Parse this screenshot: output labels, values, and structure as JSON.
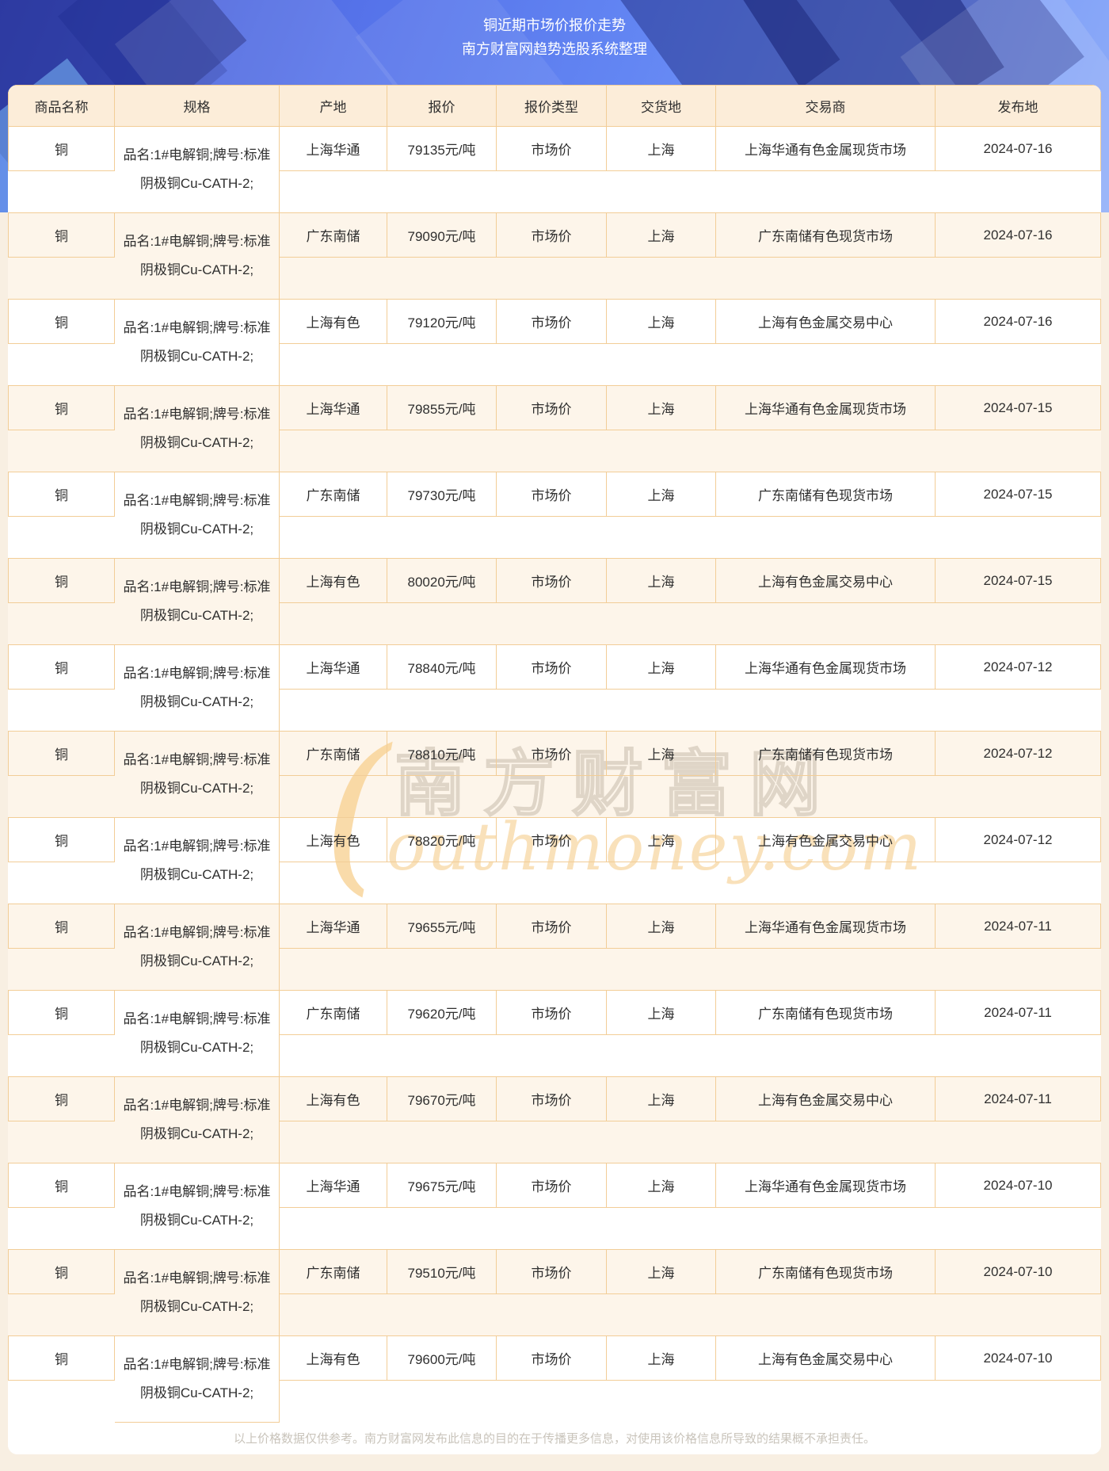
{
  "page": {
    "title": "铜近期市场价报价走势",
    "subtitle": "南方财富网趋势选股系统整理",
    "disclaimer": "以上价格数据仅供参考。南方财富网发布此信息的目的在于传播更多信息，对使用该价格信息所导致的结果概不承担责任。"
  },
  "colors": {
    "banner_blue_start": "#4355cd",
    "banner_blue_end": "#8fadf9",
    "header_bg": "#fcedd9",
    "row_alt_bg": "#fdf5ea",
    "cell_border": "#f2cd97",
    "page_bg": "#f8efe2",
    "body_text": "#2f2f2f",
    "disclaimer_text": "#c9c4bb",
    "watermark_orange": "#f7cf8d"
  },
  "watermark": {
    "swoosh_glyph": "(",
    "outline_text": "南方财富网",
    "script_text": "outhmoney.com"
  },
  "table": {
    "columns": [
      "商品名称",
      "规格",
      "产地",
      "报价",
      "报价类型",
      "交货地",
      "交易商",
      "发布地"
    ],
    "rows": [
      {
        "name": "铜",
        "spec": "品名:1#电解铜;牌号:标准阴极铜Cu-CATH-2;",
        "origin": "上海华通",
        "price": "79135元/吨",
        "price_type": "市场价",
        "delivery": "上海",
        "dealer": "上海华通有色金属现货市场",
        "date": "2024-07-16"
      },
      {
        "name": "铜",
        "spec": "品名:1#电解铜;牌号:标准阴极铜Cu-CATH-2;",
        "origin": "广东南储",
        "price": "79090元/吨",
        "price_type": "市场价",
        "delivery": "上海",
        "dealer": "广东南储有色现货市场",
        "date": "2024-07-16"
      },
      {
        "name": "铜",
        "spec": "品名:1#电解铜;牌号:标准阴极铜Cu-CATH-2;",
        "origin": "上海有色",
        "price": "79120元/吨",
        "price_type": "市场价",
        "delivery": "上海",
        "dealer": "上海有色金属交易中心",
        "date": "2024-07-16"
      },
      {
        "name": "铜",
        "spec": "品名:1#电解铜;牌号:标准阴极铜Cu-CATH-2;",
        "origin": "上海华通",
        "price": "79855元/吨",
        "price_type": "市场价",
        "delivery": "上海",
        "dealer": "上海华通有色金属现货市场",
        "date": "2024-07-15"
      },
      {
        "name": "铜",
        "spec": "品名:1#电解铜;牌号:标准阴极铜Cu-CATH-2;",
        "origin": "广东南储",
        "price": "79730元/吨",
        "price_type": "市场价",
        "delivery": "上海",
        "dealer": "广东南储有色现货市场",
        "date": "2024-07-15"
      },
      {
        "name": "铜",
        "spec": "品名:1#电解铜;牌号:标准阴极铜Cu-CATH-2;",
        "origin": "上海有色",
        "price": "80020元/吨",
        "price_type": "市场价",
        "delivery": "上海",
        "dealer": "上海有色金属交易中心",
        "date": "2024-07-15"
      },
      {
        "name": "铜",
        "spec": "品名:1#电解铜;牌号:标准阴极铜Cu-CATH-2;",
        "origin": "上海华通",
        "price": "78840元/吨",
        "price_type": "市场价",
        "delivery": "上海",
        "dealer": "上海华通有色金属现货市场",
        "date": "2024-07-12"
      },
      {
        "name": "铜",
        "spec": "品名:1#电解铜;牌号:标准阴极铜Cu-CATH-2;",
        "origin": "广东南储",
        "price": "78810元/吨",
        "price_type": "市场价",
        "delivery": "上海",
        "dealer": "广东南储有色现货市场",
        "date": "2024-07-12"
      },
      {
        "name": "铜",
        "spec": "品名:1#电解铜;牌号:标准阴极铜Cu-CATH-2;",
        "origin": "上海有色",
        "price": "78820元/吨",
        "price_type": "市场价",
        "delivery": "上海",
        "dealer": "上海有色金属交易中心",
        "date": "2024-07-12"
      },
      {
        "name": "铜",
        "spec": "品名:1#电解铜;牌号:标准阴极铜Cu-CATH-2;",
        "origin": "上海华通",
        "price": "79655元/吨",
        "price_type": "市场价",
        "delivery": "上海",
        "dealer": "上海华通有色金属现货市场",
        "date": "2024-07-11"
      },
      {
        "name": "铜",
        "spec": "品名:1#电解铜;牌号:标准阴极铜Cu-CATH-2;",
        "origin": "广东南储",
        "price": "79620元/吨",
        "price_type": "市场价",
        "delivery": "上海",
        "dealer": "广东南储有色现货市场",
        "date": "2024-07-11"
      },
      {
        "name": "铜",
        "spec": "品名:1#电解铜;牌号:标准阴极铜Cu-CATH-2;",
        "origin": "上海有色",
        "price": "79670元/吨",
        "price_type": "市场价",
        "delivery": "上海",
        "dealer": "上海有色金属交易中心",
        "date": "2024-07-11"
      },
      {
        "name": "铜",
        "spec": "品名:1#电解铜;牌号:标准阴极铜Cu-CATH-2;",
        "origin": "上海华通",
        "price": "79675元/吨",
        "price_type": "市场价",
        "delivery": "上海",
        "dealer": "上海华通有色金属现货市场",
        "date": "2024-07-10"
      },
      {
        "name": "铜",
        "spec": "品名:1#电解铜;牌号:标准阴极铜Cu-CATH-2;",
        "origin": "广东南储",
        "price": "79510元/吨",
        "price_type": "市场价",
        "delivery": "上海",
        "dealer": "广东南储有色现货市场",
        "date": "2024-07-10"
      },
      {
        "name": "铜",
        "spec": "品名:1#电解铜;牌号:标准阴极铜Cu-CATH-2;",
        "origin": "上海有色",
        "price": "79600元/吨",
        "price_type": "市场价",
        "delivery": "上海",
        "dealer": "上海有色金属交易中心",
        "date": "2024-07-10"
      }
    ]
  }
}
